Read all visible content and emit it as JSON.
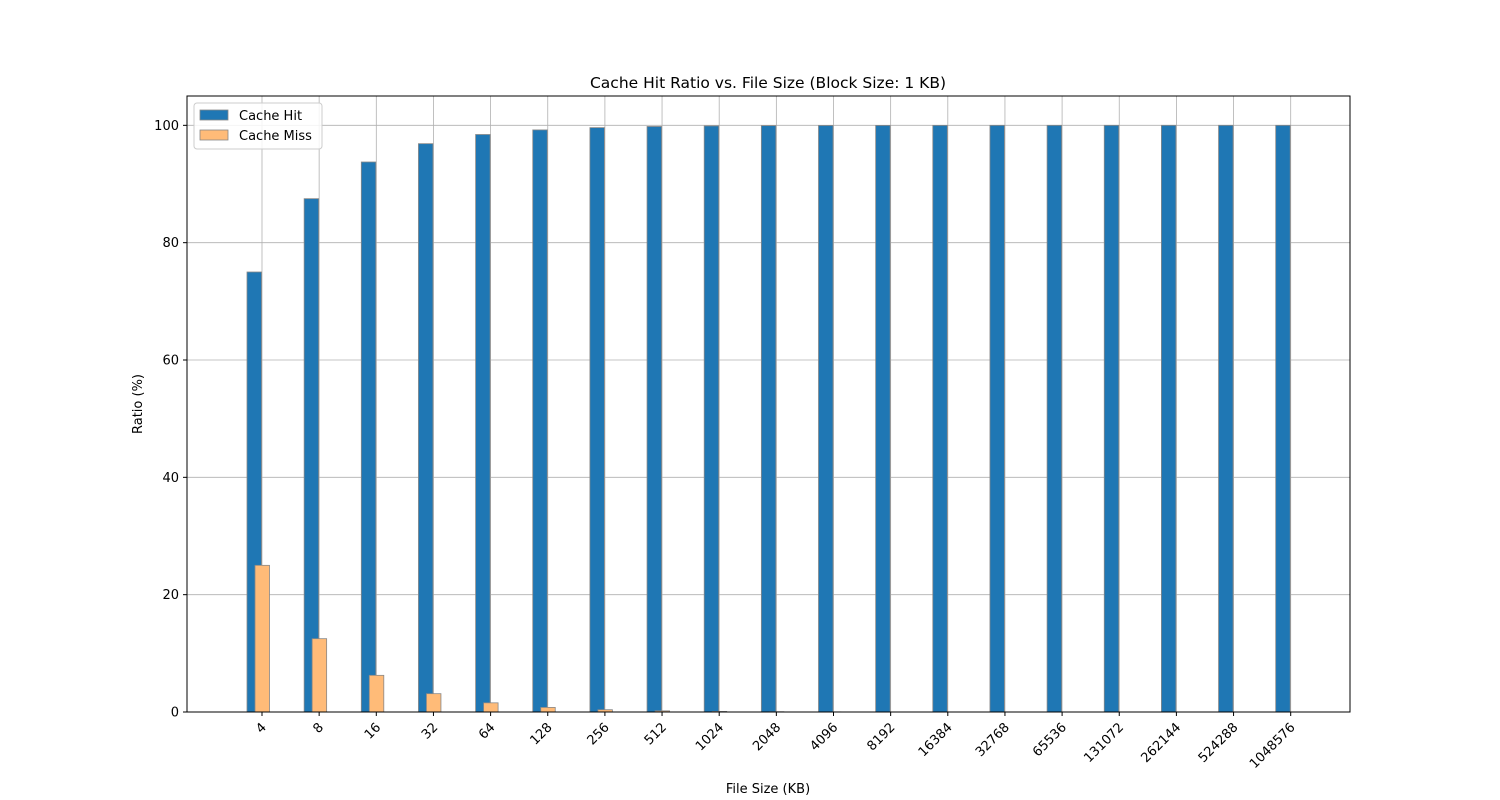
{
  "chart_data": {
    "type": "bar",
    "title": "Cache Hit Ratio vs. File Size (Block Size: 1 KB)",
    "xlabel": "File Size (KB)",
    "ylabel": "Ratio (%)",
    "ylim": [
      0,
      105
    ],
    "yticks": [
      0,
      20,
      40,
      60,
      80,
      100
    ],
    "grid": true,
    "legend_position": "upper-left",
    "categories": [
      "4",
      "8",
      "16",
      "32",
      "64",
      "128",
      "256",
      "512",
      "1024",
      "2048",
      "4096",
      "8192",
      "16384",
      "32768",
      "65536",
      "131072",
      "262144",
      "524288",
      "1048576"
    ],
    "series": [
      {
        "name": "Cache Hit",
        "color": "#1f77b4",
        "values": [
          75,
          87.5,
          93.75,
          96.875,
          98.4375,
          99.21875,
          99.609375,
          99.8046875,
          99.90234375,
          99.951171875,
          99.9755859375,
          99.98779296875,
          99.993896484375,
          99.9969482421875,
          99.99847412109375,
          99.99923706054688,
          99.99961853027344,
          99.99980926513672,
          99.99990463256836
        ]
      },
      {
        "name": "Cache Miss",
        "color": "#ffbb78",
        "values": [
          25,
          12.5,
          6.25,
          3.125,
          1.5625,
          0.78125,
          0.390625,
          0.1953125,
          0.09765625,
          0.048828125,
          0.0244140625,
          0.01220703125,
          0.006103515625,
          0.0030517578125,
          0.00152587890625,
          0.000762939453125,
          0.0003814697265625,
          0.00019073486328125,
          9.5367431640625e-05
        ]
      }
    ]
  }
}
